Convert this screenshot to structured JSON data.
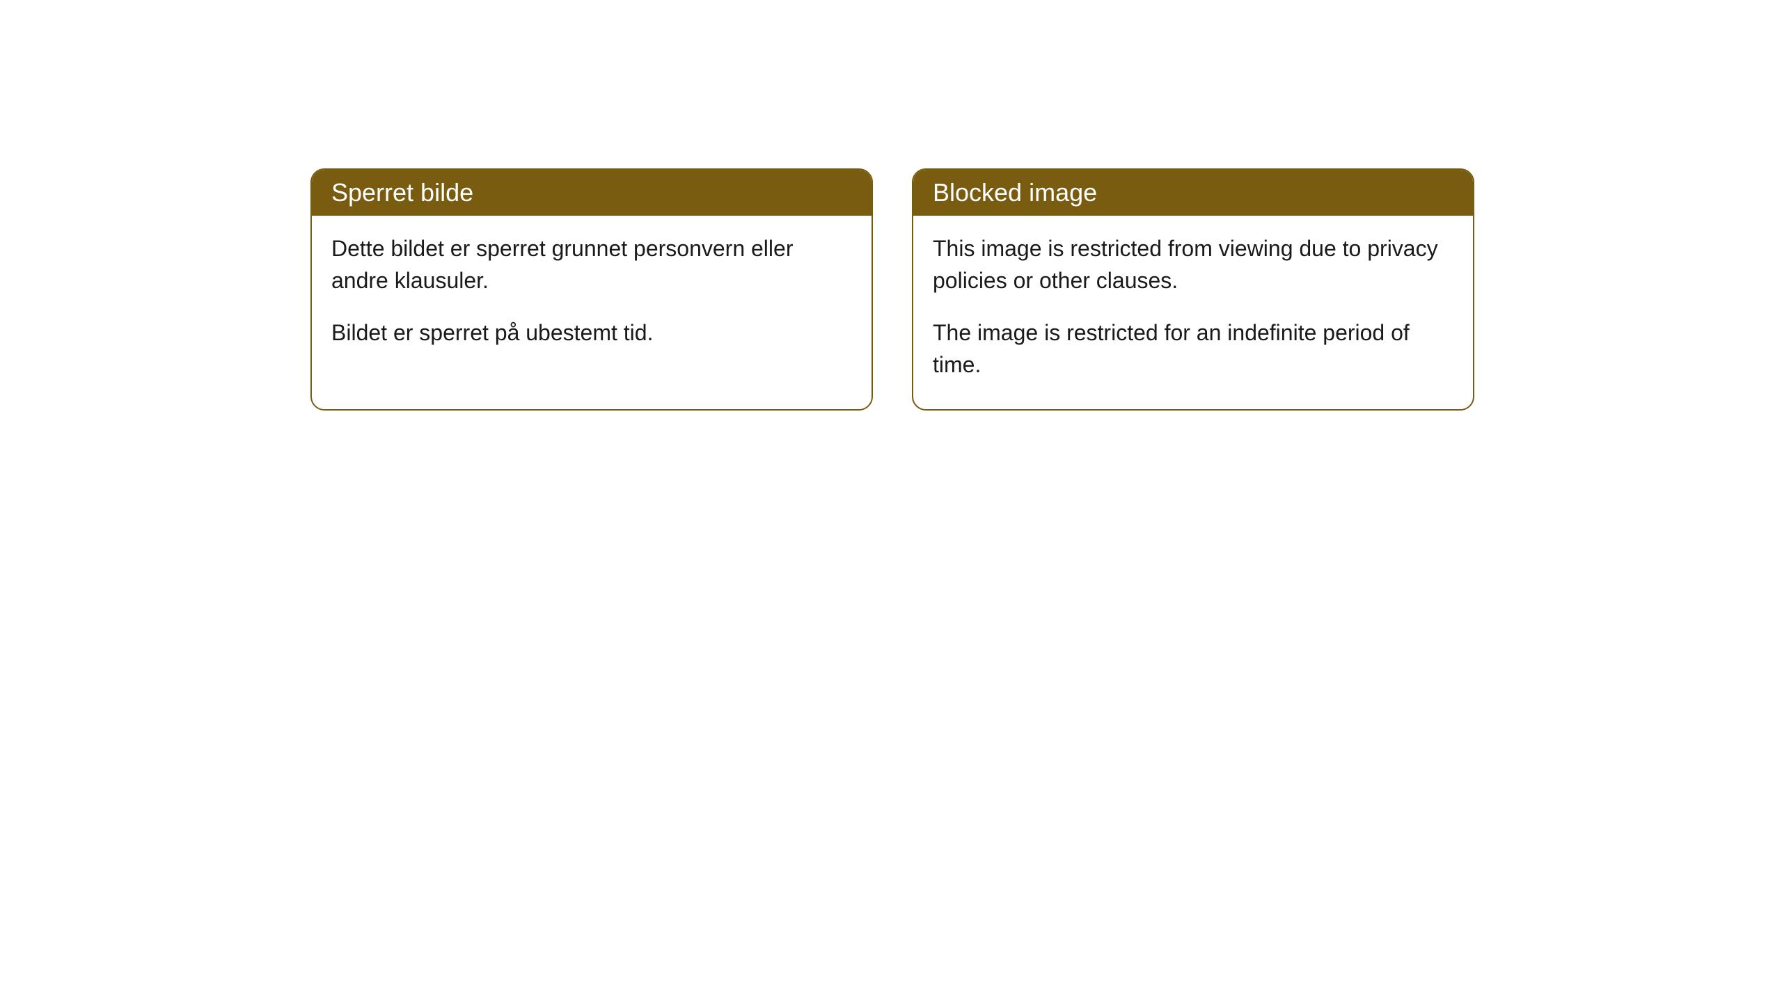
{
  "cards": [
    {
      "title": "Sperret bilde",
      "paragraph1": "Dette bildet er sperret grunnet personvern eller andre klausuler.",
      "paragraph2": "Bildet er sperret på ubestemt tid."
    },
    {
      "title": "Blocked image",
      "paragraph1": "This image is restricted from viewing due to privacy policies or other clauses.",
      "paragraph2": "The image is restricted for an indefinite period of time."
    }
  ],
  "style": {
    "header_bg_color": "#7a5c11",
    "header_text_color": "#ffffff",
    "border_color": "#7a5c11",
    "body_bg_color": "#ffffff",
    "body_text_color": "#1a1a1a",
    "border_radius": 20,
    "title_fontsize": 36,
    "body_fontsize": 32
  }
}
